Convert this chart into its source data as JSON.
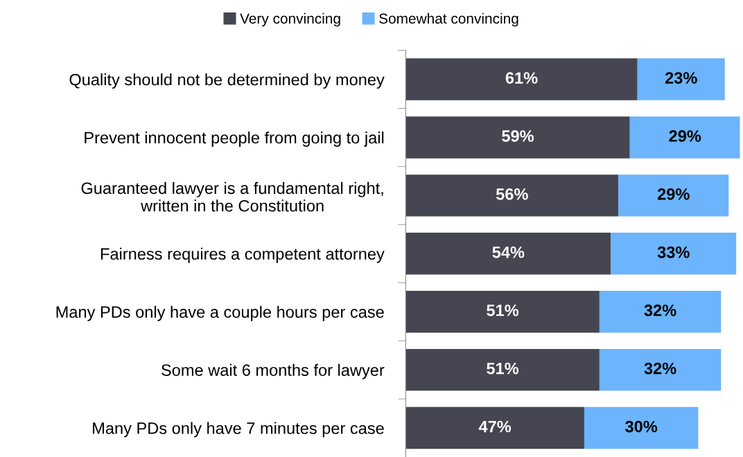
{
  "chart_data": {
    "type": "bar",
    "orientation": "horizontal",
    "stacked": true,
    "legend": "top",
    "tick_labels": "y",
    "categories": [
      "Quality should not be determined by money",
      "Prevent innocent people from going to jail",
      "Guaranteed lawyer is a fundamental right, written in the Constitution",
      "Fairness requires a competent attorney",
      "Many PDs only have a couple hours per case",
      "Some wait 6 months for lawyer",
      "Many PDs only have 7 minutes per case"
    ],
    "series": [
      {
        "name": "Very convincing",
        "color": "#454651",
        "values": [
          61,
          59,
          56,
          54,
          51,
          51,
          47
        ],
        "value_labels": [
          "61%",
          "59%",
          "56%",
          "54%",
          "51%",
          "51%",
          "47%"
        ]
      },
      {
        "name": "Somewhat convincing",
        "color": "#6cb4fb",
        "values": [
          23,
          29,
          29,
          33,
          32,
          32,
          30
        ],
        "value_labels": [
          "23%",
          "29%",
          "29%",
          "33%",
          "32%",
          "32%",
          "30%"
        ]
      }
    ]
  }
}
